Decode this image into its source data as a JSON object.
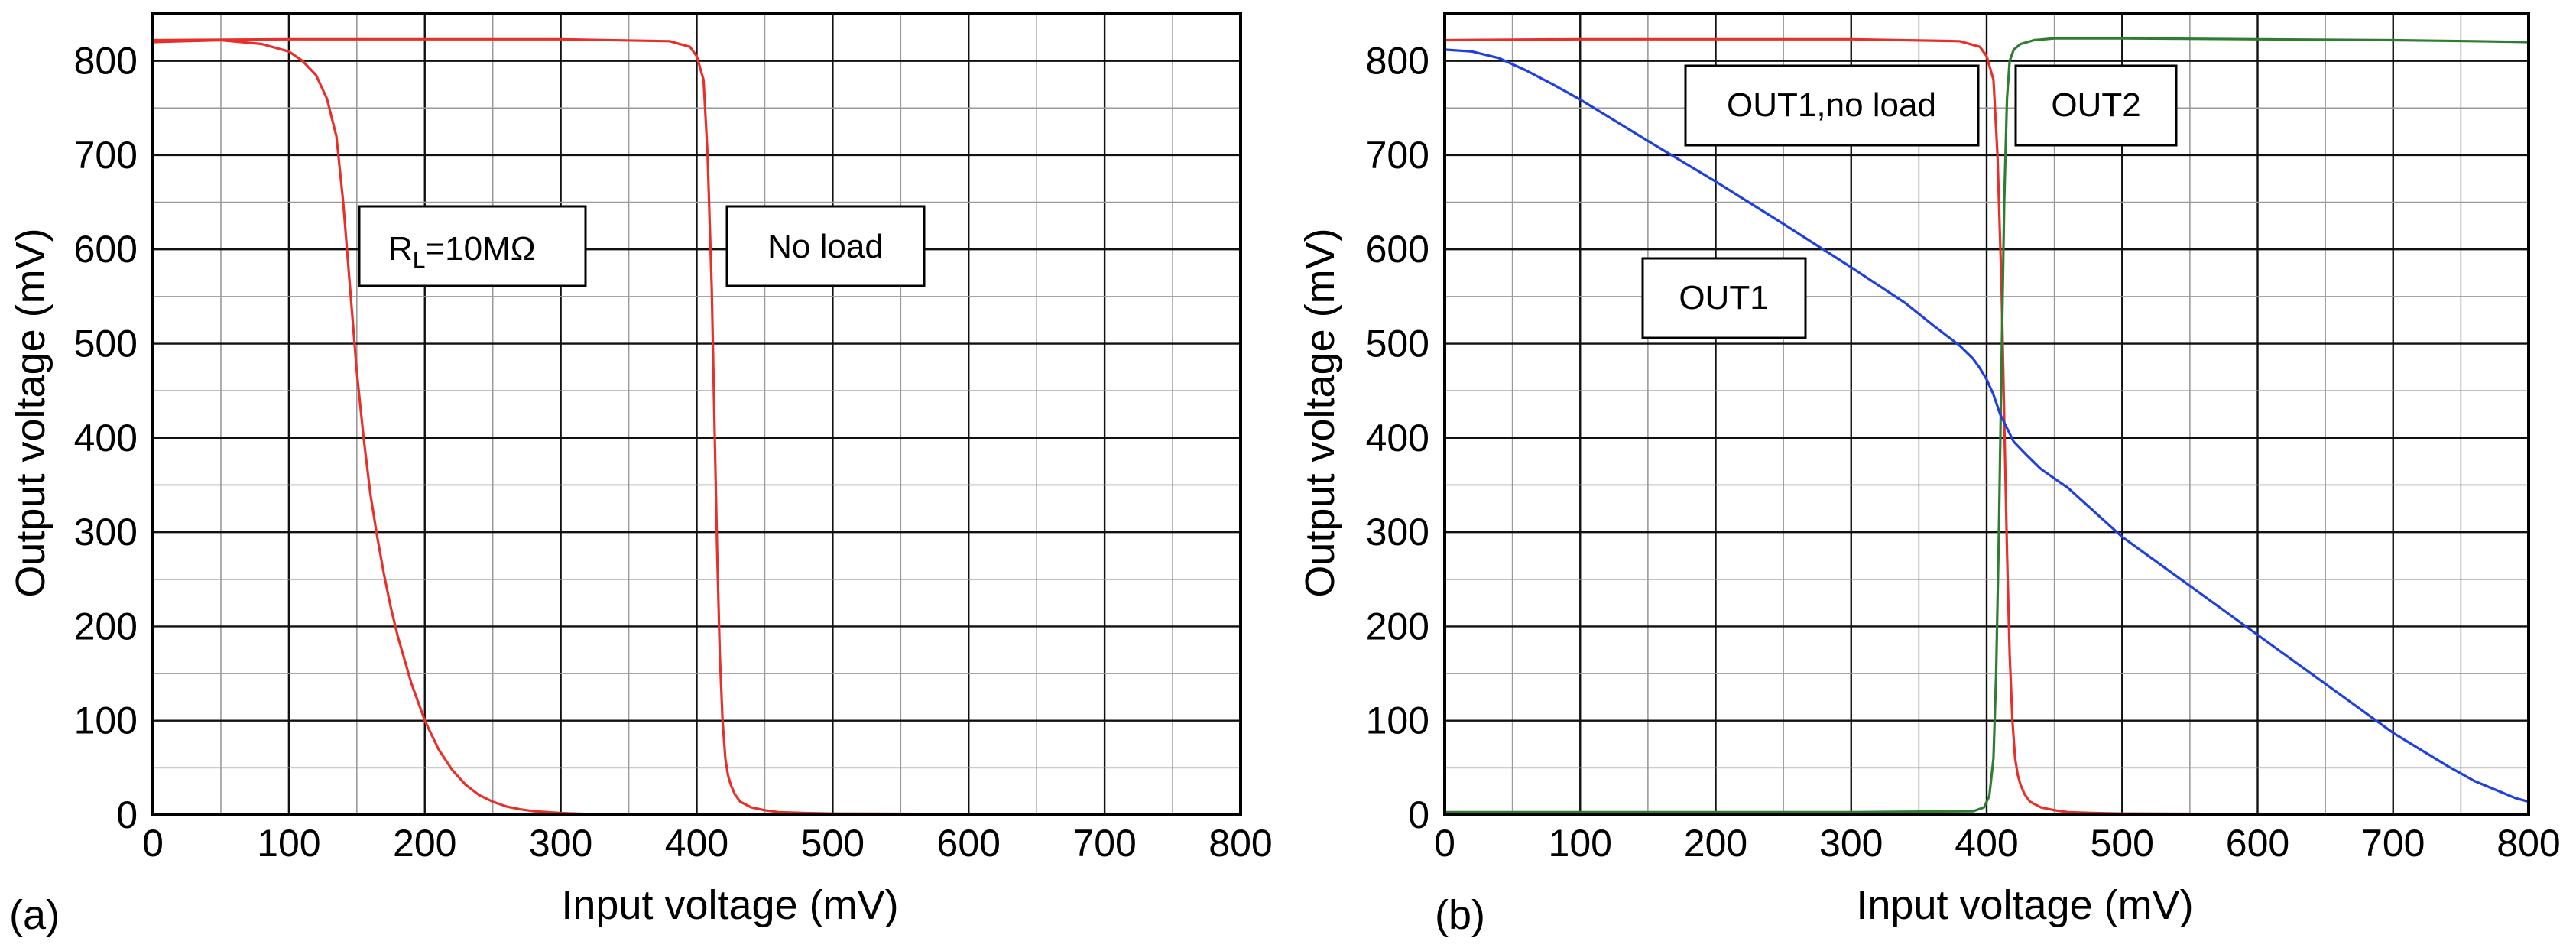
{
  "figure": {
    "panel_count": 2
  },
  "chart_data": [
    {
      "type": "line",
      "panel_label": "(a)",
      "xlabel": "Input voltage (mV)",
      "ylabel": "Output voltage (mV)",
      "xlim": [
        0,
        800
      ],
      "ylim": [
        0,
        850
      ],
      "x_ticks": [
        0,
        100,
        200,
        300,
        400,
        500,
        600,
        700,
        800
      ],
      "y_ticks": [
        0,
        100,
        200,
        300,
        400,
        500,
        600,
        700,
        800
      ],
      "x_tick_labels": [
        "0",
        "100",
        "200",
        "300",
        "400",
        "500",
        "600",
        "700",
        "800"
      ],
      "y_tick_labels": [
        "0",
        "100",
        "200",
        "300",
        "400",
        "500",
        "600",
        "700",
        "800"
      ],
      "x_grid": [
        0,
        50,
        100,
        150,
        200,
        250,
        300,
        350,
        400,
        450,
        500,
        550,
        600,
        650,
        700,
        750,
        800
      ],
      "y_grid": [
        0,
        50,
        100,
        150,
        200,
        250,
        300,
        350,
        400,
        450,
        500,
        550,
        600,
        650,
        700,
        750,
        800,
        850
      ],
      "grid": true,
      "series": [
        {
          "name": "RL=10MΩ",
          "color": "#e8302a",
          "x": [
            0,
            50,
            80,
            100,
            110,
            120,
            128,
            135,
            140,
            145,
            150,
            155,
            160,
            165,
            170,
            175,
            180,
            190,
            200,
            210,
            220,
            230,
            240,
            250,
            260,
            270,
            280,
            300,
            320,
            350,
            400,
            500,
            600,
            700,
            800
          ],
          "y": [
            820,
            822,
            818,
            810,
            800,
            785,
            760,
            720,
            650,
            560,
            470,
            400,
            340,
            295,
            255,
            220,
            190,
            140,
            100,
            70,
            48,
            32,
            21,
            14,
            9,
            6,
            4,
            2,
            1,
            0.5,
            0.3,
            0.2,
            0.2,
            0.2,
            0.2
          ]
        },
        {
          "name": "No load",
          "color": "#e8302a",
          "x": [
            0,
            100,
            200,
            300,
            380,
            395,
            400,
            405,
            408,
            411,
            413,
            415,
            417,
            419,
            421,
            423,
            425,
            428,
            432,
            440,
            450,
            460,
            480,
            500,
            600,
            700,
            800
          ],
          "y": [
            822,
            823,
            823,
            823,
            821,
            815,
            805,
            780,
            700,
            560,
            420,
            280,
            170,
            100,
            60,
            42,
            32,
            22,
            14,
            8,
            5,
            3,
            2,
            1.5,
            1,
            1,
            1
          ]
        }
      ],
      "annotations": [
        {
          "text": "R",
          "subscript": "L",
          "suffix": "=10MΩ",
          "series": "RL=10MΩ"
        },
        {
          "text": "No load",
          "series": "No load"
        }
      ]
    },
    {
      "type": "line",
      "panel_label": "(b)",
      "xlabel": "Input voltage (mV)",
      "ylabel": "Output voltage (mV)",
      "xlim": [
        0,
        800
      ],
      "ylim": [
        0,
        850
      ],
      "x_ticks": [
        0,
        100,
        200,
        300,
        400,
        500,
        600,
        700,
        800
      ],
      "y_ticks": [
        0,
        100,
        200,
        300,
        400,
        500,
        600,
        700,
        800
      ],
      "x_tick_labels": [
        "0",
        "100",
        "200",
        "300",
        "400",
        "500",
        "600",
        "700",
        "800"
      ],
      "y_tick_labels": [
        "0",
        "100",
        "200",
        "300",
        "400",
        "500",
        "600",
        "700",
        "800"
      ],
      "x_grid": [
        0,
        50,
        100,
        150,
        200,
        250,
        300,
        350,
        400,
        450,
        500,
        550,
        600,
        650,
        700,
        750,
        800
      ],
      "y_grid": [
        0,
        50,
        100,
        150,
        200,
        250,
        300,
        350,
        400,
        450,
        500,
        550,
        600,
        650,
        700,
        750,
        800,
        850
      ],
      "grid": true,
      "series": [
        {
          "name": "OUT1,no load",
          "color": "#e8302a",
          "x": [
            0,
            100,
            200,
            300,
            380,
            395,
            400,
            405,
            408,
            411,
            413,
            415,
            417,
            419,
            421,
            423,
            425,
            428,
            432,
            440,
            450,
            460,
            480,
            500,
            600,
            700,
            800
          ],
          "y": [
            822,
            823,
            823,
            823,
            821,
            815,
            805,
            780,
            700,
            560,
            420,
            280,
            170,
            100,
            60,
            42,
            32,
            22,
            14,
            8,
            5,
            3,
            2,
            1.5,
            1,
            1,
            1
          ]
        },
        {
          "name": "OUT2",
          "color": "#2e7d32",
          "x": [
            0,
            100,
            200,
            300,
            390,
            398,
            402,
            405,
            407,
            409,
            411,
            413,
            415,
            417,
            420,
            425,
            435,
            450,
            500,
            600,
            700,
            760,
            800
          ],
          "y": [
            3,
            3,
            3,
            3,
            4,
            8,
            20,
            60,
            150,
            300,
            480,
            650,
            760,
            800,
            812,
            818,
            822,
            824,
            824,
            823,
            822,
            821,
            820
          ]
        },
        {
          "name": "OUT1",
          "color": "#1f3fe0",
          "x": [
            0,
            20,
            40,
            60,
            80,
            100,
            150,
            200,
            250,
            300,
            340,
            360,
            380,
            390,
            395,
            400,
            405,
            410,
            420,
            430,
            440,
            460,
            500,
            600,
            700,
            740,
            760,
            780,
            790,
            800
          ],
          "y": [
            812,
            810,
            803,
            790,
            775,
            759,
            715,
            672,
            627,
            581,
            543,
            520,
            498,
            484,
            474,
            462,
            446,
            425,
            396,
            381,
            367,
            347,
            295,
            191,
            87,
            52,
            36,
            24,
            18,
            14
          ]
        }
      ],
      "annotations": [
        {
          "text": "OUT1,no load",
          "series": "OUT1,no load"
        },
        {
          "text": "OUT2",
          "series": "OUT2"
        },
        {
          "text": "OUT1",
          "series": "OUT1"
        }
      ]
    }
  ]
}
